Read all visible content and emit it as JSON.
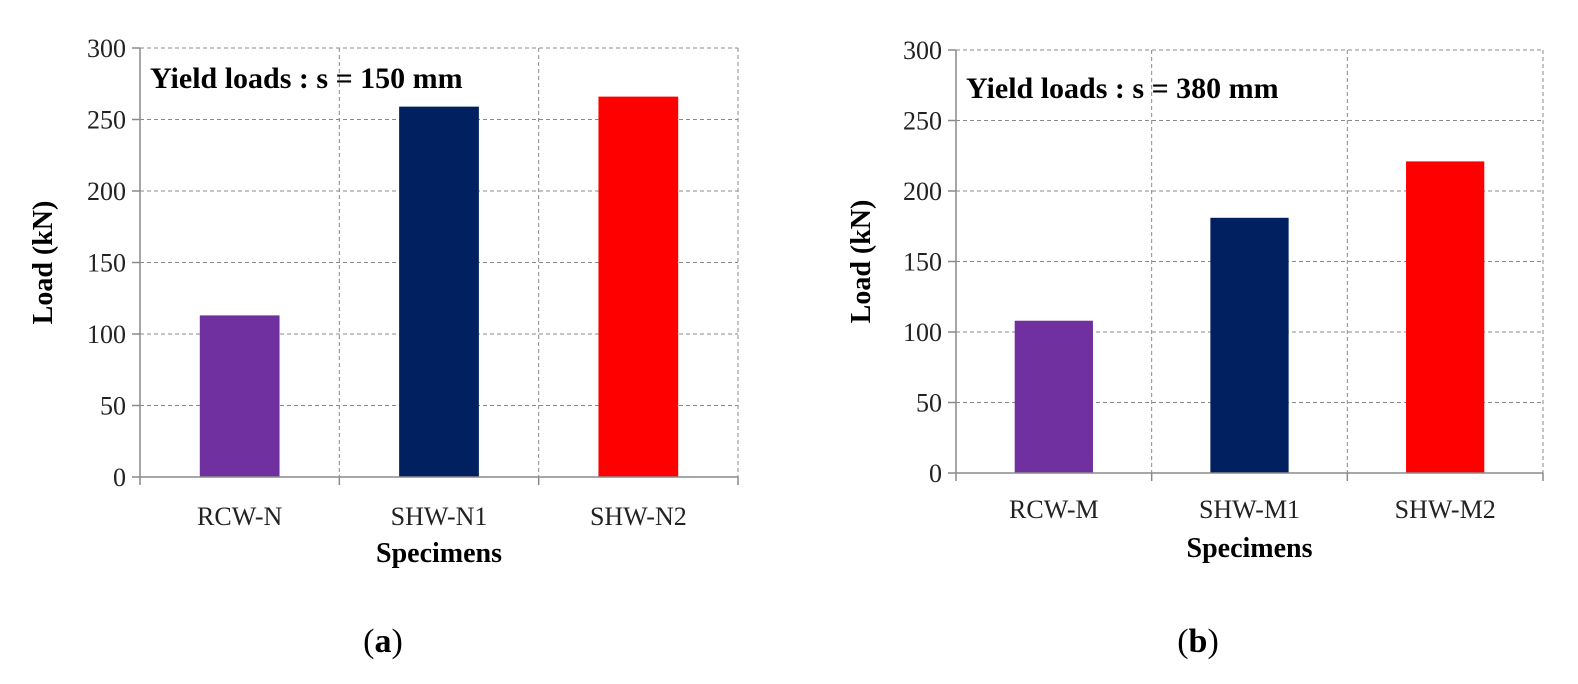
{
  "chart_data": [
    {
      "type": "bar",
      "panel": "a",
      "title": "Yield loads : s = 150 mm",
      "xlabel": "Specimens",
      "ylabel": "Load (kN)",
      "ylim": [
        0,
        300
      ],
      "yticks": [
        0,
        50,
        100,
        150,
        200,
        250,
        300
      ],
      "grid": true,
      "categories": [
        "RCW-N",
        "SHW-N1",
        "SHW-N2"
      ],
      "values": [
        113,
        259,
        266
      ],
      "colors": [
        "#7030a0",
        "#002060",
        "#ff0000"
      ]
    },
    {
      "type": "bar",
      "panel": "b",
      "title": "Yield loads : s = 380 mm",
      "xlabel": "Specimens",
      "ylabel": "Load (kN)",
      "ylim": [
        0,
        300
      ],
      "yticks": [
        0,
        50,
        100,
        150,
        200,
        250,
        300
      ],
      "grid": true,
      "categories": [
        "RCW-M",
        "SHW-M1",
        "SHW-M2"
      ],
      "values": [
        108,
        181,
        221
      ],
      "colors": [
        "#7030a0",
        "#002060",
        "#ff0000"
      ]
    }
  ],
  "panel_labels": [
    {
      "open": "(",
      "letter": "a",
      "close": ")"
    },
    {
      "open": "(",
      "letter": "b",
      "close": ")"
    }
  ]
}
